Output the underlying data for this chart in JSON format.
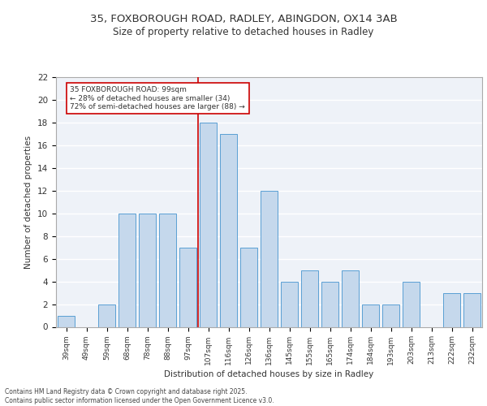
{
  "title_line1": "35, FOXBOROUGH ROAD, RADLEY, ABINGDON, OX14 3AB",
  "title_line2": "Size of property relative to detached houses in Radley",
  "xlabel": "Distribution of detached houses by size in Radley",
  "ylabel": "Number of detached properties",
  "footer": "Contains HM Land Registry data © Crown copyright and database right 2025.\nContains public sector information licensed under the Open Government Licence v3.0.",
  "categories": [
    "39sqm",
    "49sqm",
    "59sqm",
    "68sqm",
    "78sqm",
    "88sqm",
    "97sqm",
    "107sqm",
    "116sqm",
    "126sqm",
    "136sqm",
    "145sqm",
    "155sqm",
    "165sqm",
    "174sqm",
    "184sqm",
    "193sqm",
    "203sqm",
    "213sqm",
    "222sqm",
    "232sqm"
  ],
  "values": [
    1,
    0,
    2,
    10,
    10,
    10,
    7,
    18,
    17,
    7,
    12,
    4,
    5,
    4,
    5,
    2,
    2,
    4,
    0,
    3,
    3
  ],
  "bar_color": "#c5d8ec",
  "bar_edge_color": "#5a9fd4",
  "highlight_color": "#cc0000",
  "annotation_title": "35 FOXBOROUGH ROAD: 99sqm",
  "annotation_line1": "← 28% of detached houses are smaller (34)",
  "annotation_line2": "72% of semi-detached houses are larger (88) →",
  "annotation_box_color": "#ffffff",
  "annotation_box_edge": "#cc0000",
  "ylim": [
    0,
    22
  ],
  "yticks": [
    0,
    2,
    4,
    6,
    8,
    10,
    12,
    14,
    16,
    18,
    20,
    22
  ],
  "bg_color": "#eef2f8",
  "grid_color": "#ffffff"
}
